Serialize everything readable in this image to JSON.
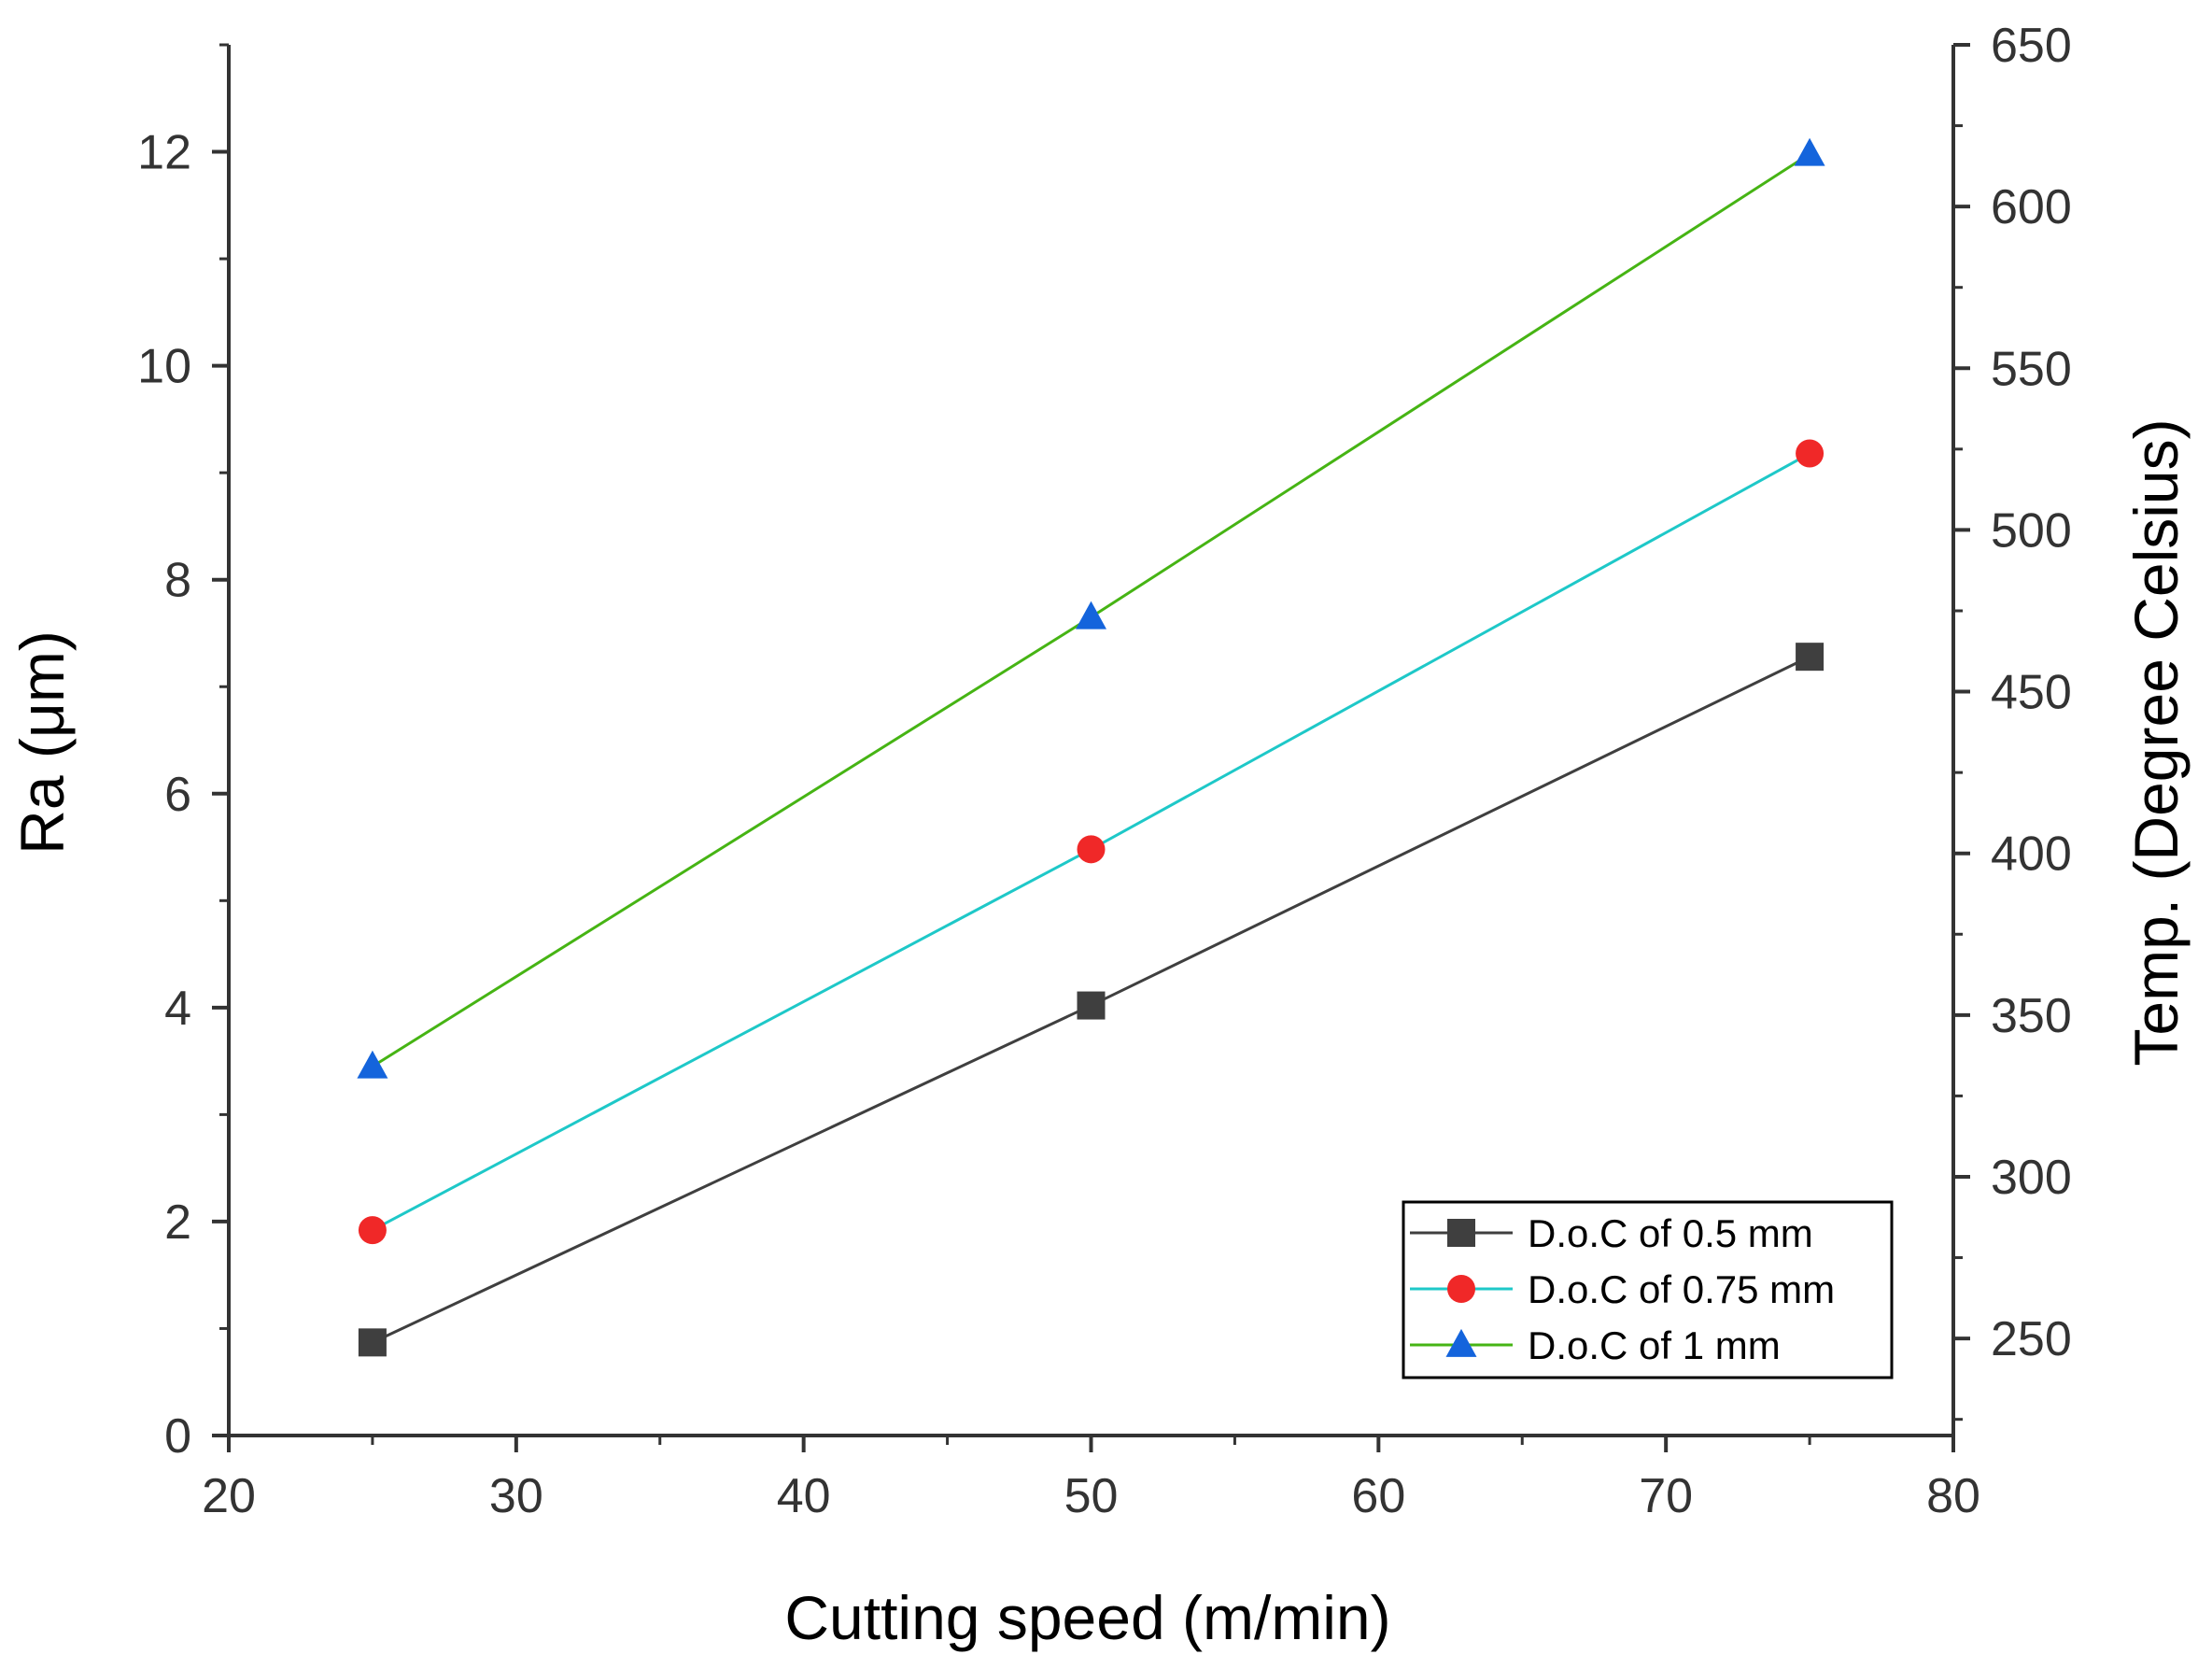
{
  "chart_data": {
    "type": "line",
    "title": "",
    "xlabel": "Cutting speed (m/min)",
    "ylabel": "Ra (μm)",
    "y2label": "Temp. (Degree Celsius)",
    "xlim": [
      20,
      80
    ],
    "ylim": [
      0,
      13
    ],
    "y2lim": [
      220,
      650
    ],
    "x_ticks": [
      20,
      30,
      40,
      50,
      60,
      70,
      80
    ],
    "y_ticks": [
      0,
      2,
      4,
      6,
      8,
      10,
      12
    ],
    "y2_ticks": [
      250,
      300,
      350,
      400,
      450,
      500,
      550,
      600,
      650
    ],
    "grid": false,
    "legend_position": "bottom-right",
    "x": [
      25,
      50,
      75
    ],
    "series": [
      {
        "name": "D.o.C of 0.5 mm",
        "values": [
          0.87,
          4.02,
          7.28
        ],
        "color": "#3f3f3f",
        "line_color": "#3f3f3f",
        "marker": "square"
      },
      {
        "name": "D.o.C of 0.75 mm",
        "values": [
          1.92,
          5.48,
          9.18
        ],
        "color": "#f02828",
        "line_color": "#1ec8c8",
        "marker": "circle"
      },
      {
        "name": "D.o.C of 1 mm",
        "values": [
          3.45,
          7.65,
          11.98
        ],
        "color": "#1464dc",
        "line_color": "#46b414",
        "marker": "triangle"
      }
    ]
  }
}
